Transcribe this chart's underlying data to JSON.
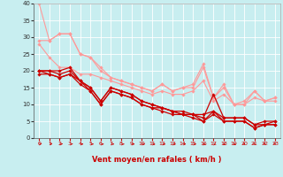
{
  "title": "",
  "xlabel": "Vent moyen/en rafales ( km/h )",
  "background_color": "#c8eef0",
  "grid_color": "#ffffff",
  "xlim": [
    -0.5,
    23.5
  ],
  "ylim": [
    0,
    40
  ],
  "xticks": [
    0,
    1,
    2,
    3,
    4,
    5,
    6,
    7,
    8,
    9,
    10,
    11,
    12,
    13,
    14,
    15,
    16,
    17,
    18,
    19,
    20,
    21,
    22,
    23
  ],
  "yticks": [
    0,
    5,
    10,
    15,
    20,
    25,
    30,
    35,
    40
  ],
  "series_light": [
    {
      "x": [
        0,
        1,
        2,
        3,
        4,
        5,
        6,
        7,
        8,
        9,
        10,
        11,
        12,
        13,
        14,
        15,
        16,
        17,
        18,
        19,
        20,
        21,
        22,
        23
      ],
      "y": [
        40,
        29,
        31,
        31,
        25,
        24,
        21,
        18,
        17,
        16,
        15,
        14,
        16,
        14,
        15,
        16,
        22,
        12,
        16,
        10,
        11,
        14,
        11,
        12
      ],
      "color": "#ff9999",
      "lw": 0.8,
      "marker": "D",
      "ms": 1.8
    },
    {
      "x": [
        0,
        1,
        2,
        3,
        4,
        5,
        6,
        7,
        8,
        9,
        10,
        11,
        12,
        13,
        14,
        15,
        16,
        17,
        18,
        19,
        20,
        21,
        22,
        23
      ],
      "y": [
        29,
        29,
        31,
        31,
        25,
        24,
        20,
        18,
        17,
        16,
        15,
        14,
        16,
        14,
        15,
        15,
        21,
        12,
        15,
        10,
        10,
        14,
        11,
        12
      ],
      "color": "#ff9999",
      "lw": 0.8,
      "marker": "D",
      "ms": 1.8
    },
    {
      "x": [
        0,
        1,
        2,
        3,
        4,
        5,
        6,
        7,
        8,
        9,
        10,
        11,
        12,
        13,
        14,
        15,
        16,
        17,
        18,
        19,
        20,
        21,
        22,
        23
      ],
      "y": [
        28,
        24,
        21,
        21,
        19,
        19,
        18,
        17,
        16,
        15,
        14,
        13,
        14,
        13,
        13,
        14,
        17,
        11,
        13,
        10,
        10,
        12,
        11,
        11
      ],
      "color": "#ff9999",
      "lw": 0.8,
      "marker": "D",
      "ms": 1.8
    }
  ],
  "series_dark": [
    {
      "x": [
        0,
        1,
        2,
        3,
        4,
        5,
        6,
        7,
        8,
        9,
        10,
        11,
        12,
        13,
        14,
        15,
        16,
        17,
        18,
        19,
        20,
        21,
        22,
        23
      ],
      "y": [
        20,
        20,
        20,
        21,
        17,
        15,
        11,
        15,
        14,
        13,
        11,
        10,
        9,
        8,
        7,
        7,
        6,
        13,
        6,
        6,
        6,
        4,
        4,
        5
      ],
      "color": "#cc0000",
      "lw": 0.9,
      "marker": "D",
      "ms": 1.8
    },
    {
      "x": [
        0,
        1,
        2,
        3,
        4,
        5,
        6,
        7,
        8,
        9,
        10,
        11,
        12,
        13,
        14,
        15,
        16,
        17,
        18,
        19,
        20,
        21,
        22,
        23
      ],
      "y": [
        20,
        20,
        19,
        20,
        17,
        15,
        11,
        15,
        14,
        13,
        11,
        10,
        9,
        8,
        8,
        7,
        7,
        8,
        6,
        6,
        6,
        4,
        5,
        5
      ],
      "color": "#cc0000",
      "lw": 0.9,
      "marker": "D",
      "ms": 1.8
    },
    {
      "x": [
        0,
        1,
        2,
        3,
        4,
        5,
        6,
        7,
        8,
        9,
        10,
        11,
        12,
        13,
        14,
        15,
        16,
        17,
        18,
        19,
        20,
        21,
        22,
        23
      ],
      "y": [
        20,
        19,
        18,
        19,
        17,
        14,
        10,
        14,
        13,
        12,
        10,
        9,
        9,
        8,
        7,
        7,
        5,
        8,
        5,
        5,
        5,
        3,
        4,
        4
      ],
      "color": "#cc0000",
      "lw": 0.9,
      "marker": "D",
      "ms": 1.8
    },
    {
      "x": [
        0,
        1,
        2,
        3,
        4,
        5,
        6,
        7,
        8,
        9,
        10,
        11,
        12,
        13,
        14,
        15,
        16,
        17,
        18,
        19,
        20,
        21,
        22,
        23
      ],
      "y": [
        19,
        19,
        18,
        19,
        16,
        14,
        10,
        14,
        13,
        12,
        10,
        9,
        8,
        7,
        7,
        6,
        5,
        7,
        5,
        5,
        5,
        3,
        4,
        4
      ],
      "color": "#cc0000",
      "lw": 0.9,
      "marker": "D",
      "ms": 1.8
    }
  ],
  "arrow_color": "#cc0000",
  "xlabel_color": "#cc0000",
  "xlabel_fontsize": 6.0,
  "tick_fontsize_x": 4.5,
  "tick_fontsize_y": 5.0
}
